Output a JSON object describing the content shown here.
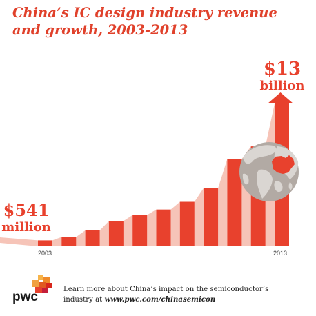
{
  "title": "China’s IC design industry revenue and growth, 2003-2013",
  "start_label": {
    "line1": "$541",
    "line2": "million"
  },
  "end_label": {
    "line1": "$13",
    "line2": "billion"
  },
  "footer": {
    "text": "Learn more about China’s impact on the semiconductor’s industry at ",
    "url": "www.pwc.com/chinasemicon",
    "logo_text": "pwc"
  },
  "colors": {
    "accent": "#e8412d",
    "shadow": "#f6c4b8",
    "globe": "#b2aaa4",
    "globe_land": "#dad6d2",
    "china": "#e8412d"
  },
  "icons": {
    "globe": "globe-icon",
    "arrow": "up-arrow-icon",
    "logo": "pwc-logo"
  },
  "chart_data": {
    "type": "bar",
    "title": "China’s IC design industry revenue and growth, 2003-2013",
    "x_tick_labels": [
      "2003",
      "2013"
    ],
    "categories": [
      "2003",
      "",
      "",
      "",
      "",
      "",
      "",
      "",
      "",
      "",
      "2013"
    ],
    "values": [
      0.54,
      0.85,
      1.45,
      2.3,
      2.85,
      3.35,
      4.05,
      5.3,
      7.95,
      9.1,
      13
    ],
    "units": "billion USD",
    "annotations": [
      "$541 million",
      "$13 billion"
    ],
    "grid": false,
    "legend": "none"
  }
}
